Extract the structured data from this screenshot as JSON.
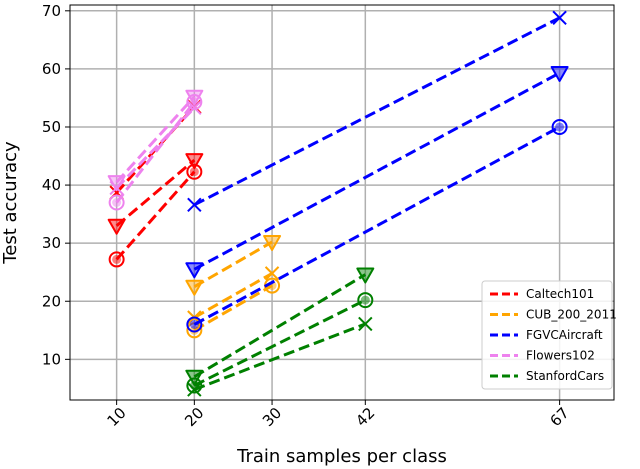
{
  "chart_data": {
    "type": "line",
    "xlabel": "Train samples per class",
    "ylabel": "Test accuracy",
    "x_ticks": [
      10,
      20,
      30,
      42,
      67
    ],
    "y_ticks": [
      10,
      20,
      30,
      40,
      50,
      60,
      70
    ],
    "xlim": [
      4,
      74
    ],
    "ylim": [
      3,
      71
    ],
    "grid": true,
    "legend_position": "lower right",
    "marker_types": [
      "circle",
      "triangle-down",
      "x"
    ],
    "series": [
      {
        "name": "Caltech101",
        "color": "#ff0000",
        "lines": [
          {
            "marker": "circle",
            "points": [
              [
                10,
                27.2
              ],
              [
                20,
                42.3
              ]
            ]
          },
          {
            "marker": "triangle-down",
            "points": [
              [
                10,
                33
              ],
              [
                20,
                44.3
              ]
            ]
          },
          {
            "marker": "x",
            "points": [
              [
                10,
                38.7
              ],
              [
                20,
                53.5
              ]
            ]
          }
        ]
      },
      {
        "name": "CUB_200_2011",
        "color": "#ffa500",
        "lines": [
          {
            "marker": "circle",
            "points": [
              [
                20,
                15
              ],
              [
                30,
                22.7
              ]
            ]
          },
          {
            "marker": "triangle-down",
            "points": [
              [
                20,
                22.5
              ],
              [
                30,
                30.2
              ]
            ]
          },
          {
            "marker": "x",
            "points": [
              [
                20,
                17.2
              ],
              [
                30,
                24.8
              ]
            ]
          }
        ]
      },
      {
        "name": "FGVCAircraft",
        "color": "#0000ff",
        "lines": [
          {
            "marker": "circle",
            "points": [
              [
                20,
                16
              ],
              [
                67,
                50
              ]
            ]
          },
          {
            "marker": "triangle-down",
            "points": [
              [
                20,
                25.5
              ],
              [
                67,
                59.3
              ]
            ]
          },
          {
            "marker": "x",
            "points": [
              [
                20,
                36.6
              ],
              [
                67,
                68.8
              ]
            ]
          }
        ]
      },
      {
        "name": "Flowers102",
        "color": "#ee82ee",
        "lines": [
          {
            "marker": "circle",
            "points": [
              [
                10,
                37
              ],
              [
                20,
                54.3
              ]
            ]
          },
          {
            "marker": "triangle-down",
            "points": [
              [
                10,
                40.5
              ],
              [
                20,
                55.2
              ]
            ]
          },
          {
            "marker": "x",
            "points": [
              [
                10,
                39.5
              ],
              [
                20,
                53.3
              ]
            ]
          }
        ]
      },
      {
        "name": "StanfordCars",
        "color": "#008000",
        "lines": [
          {
            "marker": "circle",
            "points": [
              [
                20,
                5.5
              ],
              [
                42,
                20.2
              ]
            ]
          },
          {
            "marker": "triangle-down",
            "points": [
              [
                20,
                7
              ],
              [
                42,
                24.6
              ]
            ]
          },
          {
            "marker": "x",
            "points": [
              [
                20,
                4.8
              ],
              [
                42,
                16.1
              ]
            ]
          }
        ]
      }
    ]
  }
}
